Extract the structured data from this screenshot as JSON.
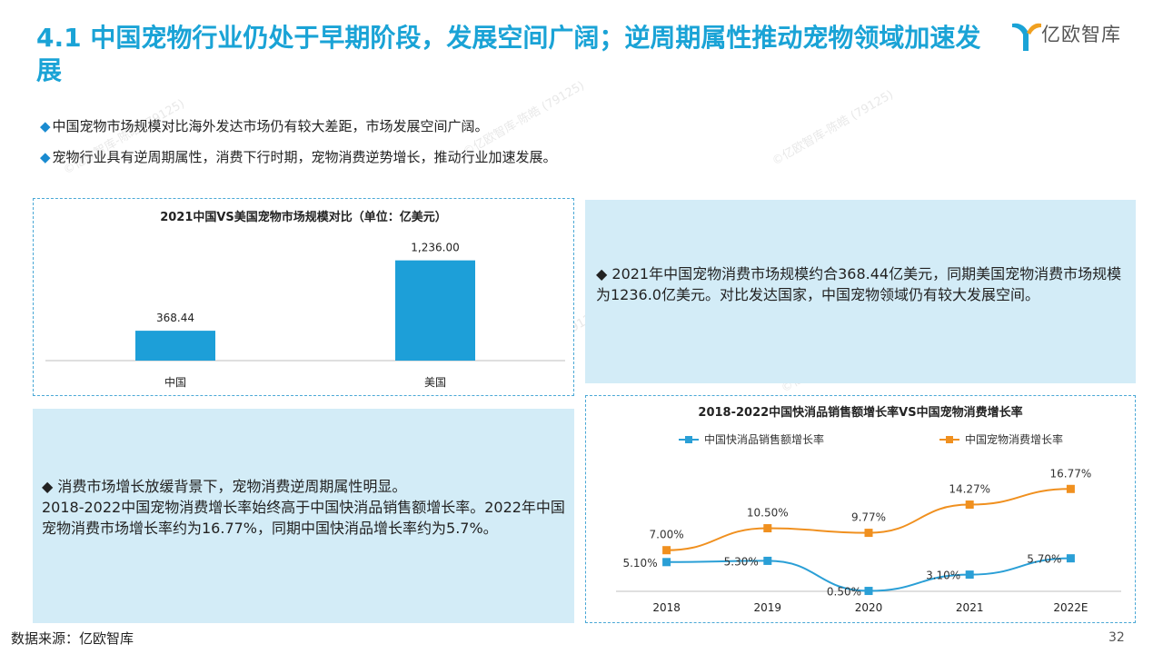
{
  "header": {
    "title": "4.1 中国宠物行业仍处于早期阶段，发展空间广阔；逆周期属性推动宠物领域加速发展",
    "logo_text": "亿欧智库"
  },
  "bullets": [
    "中国宠物市场规模对比海外发达市场仍有较大差距，市场发展空间广阔。",
    "宠物行业具有逆周期属性，消费下行时期，宠物消费逆势增长，推动行业加速发展。"
  ],
  "bullet_marker": "◆",
  "notes": {
    "note1": "◆  2021年中国宠物消费市场规模约合368.44亿美元，同期美国宠物消费市场规模为1236.0亿美元。对比发达国家，中国宠物领域仍有较大发展空间。",
    "note2_line1": "◆  消费市场增长放缓背景下，宠物消费逆周期属性明显。",
    "note2_line2": "2018-2022中国宠物消费增长率始终高于中国快消品销售额增长率。2022年中国宠物消费市场增长率约为16.77%，同期中国快消品增长率约为5.7%。"
  },
  "watermark": "©亿欧智库-陈皓 (79125)",
  "footer": {
    "source": "数据来源：亿欧智库",
    "page": "32"
  },
  "colors": {
    "accent": "#1aa3d6",
    "bar": "#1d9fd8",
    "line_blue": "#2a9fd6",
    "line_orange": "#f0901f"
  },
  "chart_data": [
    {
      "type": "bar",
      "title": "2021中国VS美国宠物市场规模对比（单位：亿美元）",
      "categories": [
        "中国",
        "美国"
      ],
      "values": [
        368.44,
        1236.0
      ],
      "value_labels": [
        "368.44",
        "1,236.00"
      ],
      "ylim": [
        0,
        1400
      ]
    },
    {
      "type": "line",
      "title": "2018-2022中国快消品销售额增长率VS中国宠物消费增长率",
      "x": [
        "2018",
        "2019",
        "2020",
        "2021",
        "2022E"
      ],
      "legend_position": "top",
      "series": [
        {
          "name": "中国快消品销售额增长率",
          "values": [
            5.1,
            5.3,
            0.5,
            3.1,
            5.7
          ],
          "labels": [
            "5.10%",
            "5.30%",
            "0.50%",
            "3.10%",
            "5.70%"
          ]
        },
        {
          "name": "中国宠物消费增长率",
          "values": [
            7.0,
            10.5,
            9.77,
            14.27,
            16.77
          ],
          "labels": [
            "7.00%",
            "10.50%",
            "9.77%",
            "14.27%",
            "16.77%"
          ]
        }
      ]
    }
  ]
}
